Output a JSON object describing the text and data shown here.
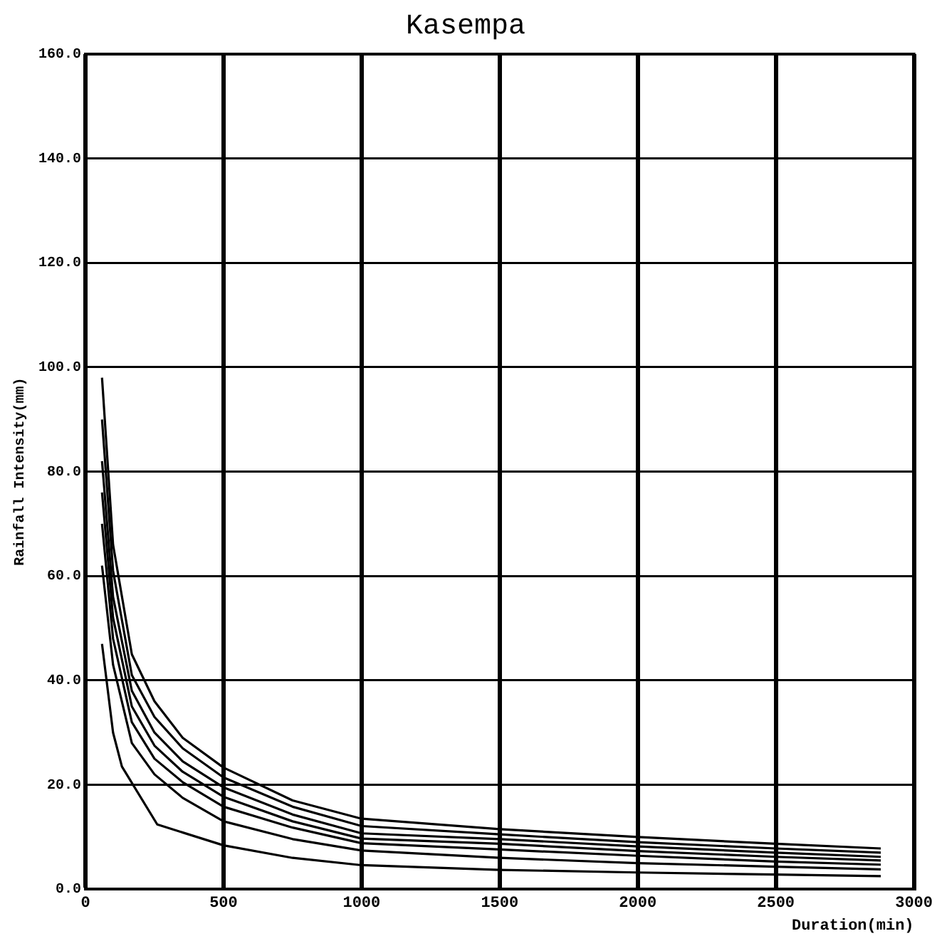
{
  "chart_data": {
    "type": "line",
    "title": "Kasempa",
    "xlabel": "Duration(min)",
    "ylabel": "Rainfall Intensity(mm)",
    "xlim": [
      0,
      3000
    ],
    "xticks": [
      0,
      500,
      1000,
      1500,
      2000,
      2500,
      3000
    ],
    "ylim": [
      0,
      160
    ],
    "yticks": [
      {
        "value": 0,
        "label": "0.0"
      },
      {
        "value": 20,
        "label": "20.0"
      },
      {
        "value": 40,
        "label": "40.0"
      },
      {
        "value": 60,
        "label": "60.0"
      },
      {
        "value": 80,
        "label": "80.0"
      },
      {
        "value": 100,
        "label": "100.0"
      },
      {
        "value": 120,
        "label": "120.0"
      },
      {
        "value": 140,
        "label": "140.0"
      },
      {
        "value": 160,
        "label": "160.0"
      }
    ],
    "grid": true,
    "legend": false,
    "marker": "none",
    "line_style": "solid",
    "series": [
      {
        "color": "#000000",
        "x": [
          60,
          100,
          168,
          250,
          352,
          500,
          750,
          1000,
          1500,
          2000,
          2500,
          2880
        ],
        "values": [
          98,
          66,
          45,
          36,
          29,
          23.3,
          17,
          13.5,
          11.5,
          10,
          8.7,
          7.8
        ]
      },
      {
        "color": "#000000",
        "x": [
          60,
          100,
          168,
          250,
          352,
          500,
          750,
          1000,
          1500,
          2000,
          2500,
          2880
        ],
        "values": [
          90,
          61,
          41,
          33,
          27,
          21.4,
          15.8,
          12.1,
          10.5,
          9,
          7.8,
          7
        ]
      },
      {
        "color": "#000000",
        "x": [
          60,
          100,
          168,
          250,
          352,
          500,
          750,
          1000,
          1500,
          2000,
          2500,
          2880
        ],
        "values": [
          82,
          56,
          38,
          30,
          24.5,
          19.5,
          14.3,
          10.7,
          9.6,
          8.2,
          7,
          6.2
        ]
      },
      {
        "color": "#000000",
        "x": [
          60,
          100,
          168,
          250,
          352,
          500,
          750,
          1000,
          1500,
          2000,
          2500,
          2880
        ],
        "values": [
          76,
          52,
          35,
          27.5,
          22.5,
          17.7,
          13,
          9.7,
          8.7,
          7.3,
          6.2,
          5.5
        ]
      },
      {
        "color": "#000000",
        "x": [
          60,
          100,
          168,
          250,
          352,
          500,
          750,
          1000,
          1500,
          2000,
          2500,
          2880
        ],
        "values": [
          70,
          48,
          32,
          25,
          20.5,
          15.8,
          11.8,
          8.8,
          7.6,
          6.4,
          5.3,
          4.7
        ]
      },
      {
        "color": "#000000",
        "x": [
          60,
          100,
          168,
          250,
          352,
          500,
          750,
          1000,
          1500,
          2000,
          2500,
          2880
        ],
        "values": [
          62,
          43,
          28,
          22,
          17.5,
          13,
          9.6,
          7.4,
          6,
          5,
          4.3,
          3.8
        ]
      },
      {
        "color": "#000000",
        "x": [
          60,
          100,
          132,
          260,
          500,
          750,
          1000,
          1500,
          2000,
          2500,
          2880
        ],
        "values": [
          47,
          30,
          23.5,
          12.4,
          8.4,
          6,
          4.6,
          3.7,
          3.2,
          2.8,
          2.5
        ]
      }
    ]
  }
}
